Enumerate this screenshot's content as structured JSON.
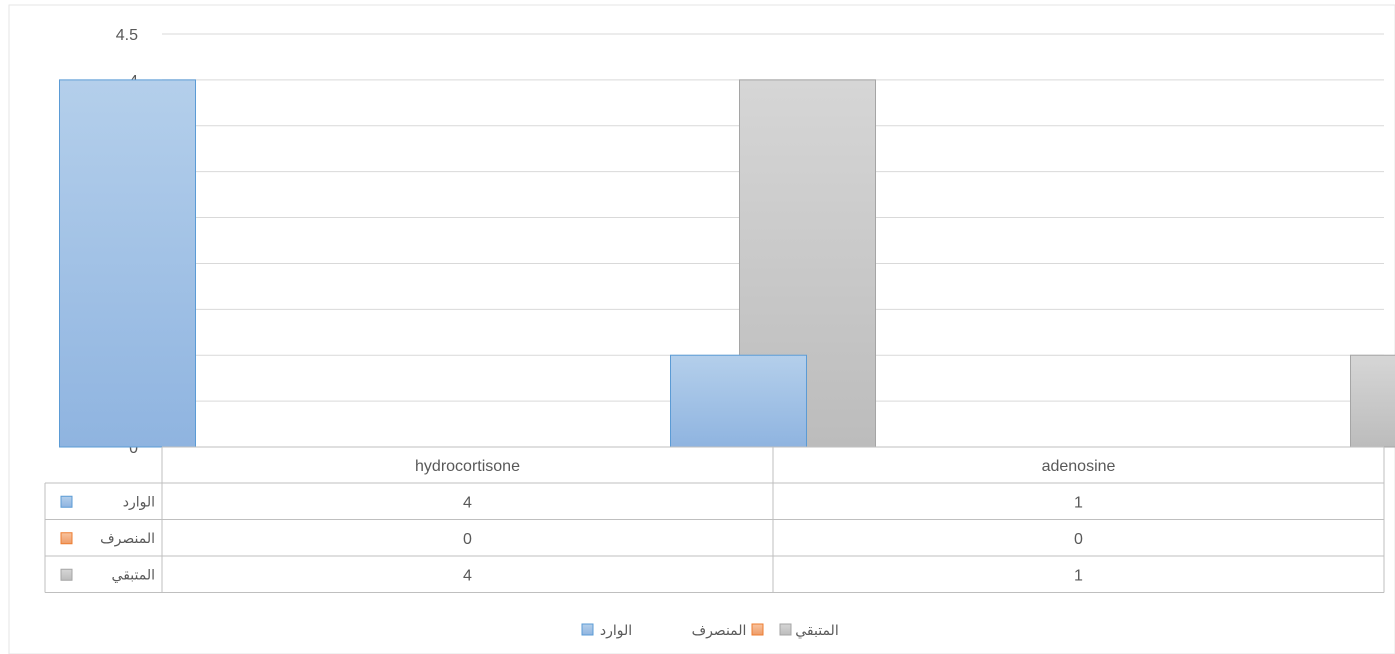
{
  "chart_data": {
    "type": "bar",
    "title": "",
    "xlabel": "",
    "ylabel": "",
    "categories": [
      "hydrocortisone",
      "adenosine"
    ],
    "series": [
      {
        "name": "الوارد",
        "values": [
          4,
          1
        ],
        "color": "#9dc3e6"
      },
      {
        "name": "المنصرف",
        "values": [
          0,
          0
        ],
        "color": "#f4b183"
      },
      {
        "name": "المتبقي",
        "values": [
          4,
          1
        ],
        "color": "#c9c9c9"
      }
    ],
    "ylim": [
      0,
      4.5
    ],
    "yticks": [
      "0",
      "0.5",
      "1",
      "1.5",
      "2",
      "2.5",
      "3",
      "3.5",
      "4",
      "4.5"
    ],
    "grid": true,
    "legend_position": "bottom",
    "data_table": true
  },
  "colors": {
    "gridline": "#d9d9d9",
    "text": "#595959",
    "table_border": "#bfbfbf"
  }
}
